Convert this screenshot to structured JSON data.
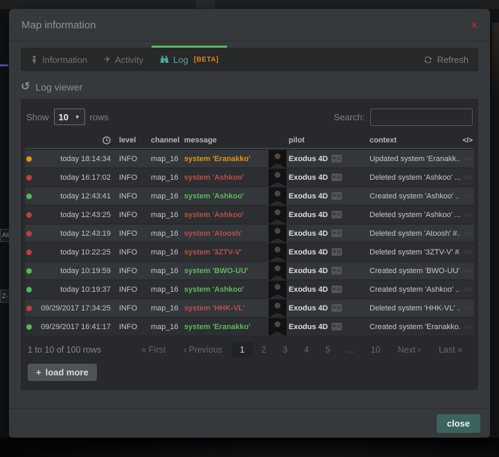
{
  "colors": {
    "accent_green": "#5cb85c",
    "status_updated": "#e2940d",
    "status_deleted": "#c0403a",
    "status_created": "#4fba51",
    "tab_active_teal": "#55a79d",
    "beta_orange": "#e28a0d",
    "close_button_teal": "#3b6360",
    "close_x_red": "#a02e2e"
  },
  "icons": {
    "close": "×",
    "dropdown": "▼",
    "plus": "+",
    "history": "↺",
    "plane": "✈",
    "code": "</>"
  },
  "window": {
    "title": "Map information"
  },
  "tabs": {
    "information": "Information",
    "activity": "Activity",
    "log": "Log",
    "log_beta": "[BETA]",
    "refresh": "Refresh"
  },
  "log_viewer": {
    "title": "Log viewer"
  },
  "toolbar": {
    "show_label": "Show",
    "page_size": "10",
    "rows_label": "rows",
    "search_label": "Search:",
    "search_value": ""
  },
  "table": {
    "headers": {
      "level": "level",
      "channel": "channel",
      "message": "message",
      "pilot": "pilot",
      "context": "context"
    },
    "rows": [
      {
        "status": "updated",
        "time": "today 18:14:34",
        "level": "INFO",
        "channel": "map_16",
        "message": "system 'Eranakko'",
        "pilot": "Exodus 4D",
        "context": "Updated system 'Eranakk..."
      },
      {
        "status": "deleted",
        "time": "today 16:17:02",
        "level": "INFO",
        "channel": "map_16",
        "message": "system 'Ashkoo'",
        "pilot": "Exodus 4D",
        "context": "Deleted system 'Ashkoo' ..."
      },
      {
        "status": "created",
        "time": "today 12:43:41",
        "level": "INFO",
        "channel": "map_16",
        "message": "system 'Ashkoo'",
        "pilot": "Exodus 4D",
        "context": "Created system 'Ashkoo' ..."
      },
      {
        "status": "deleted",
        "time": "today 12:43:25",
        "level": "INFO",
        "channel": "map_16",
        "message": "system 'Ashkoo'",
        "pilot": "Exodus 4D",
        "context": "Deleted system 'Ashkoo' ..."
      },
      {
        "status": "deleted",
        "time": "today 12:43:19",
        "level": "INFO",
        "channel": "map_16",
        "message": "system 'Atoosh'",
        "pilot": "Exodus 4D",
        "context": "Deleted system 'Atoosh' #..."
      },
      {
        "status": "deleted",
        "time": "today 10:22:25",
        "level": "INFO",
        "channel": "map_16",
        "message": "system '3ZTV-V'",
        "pilot": "Exodus 4D",
        "context": "Deleted system '3ZTV-V' #..."
      },
      {
        "status": "created",
        "time": "today 10:19:59",
        "level": "INFO",
        "channel": "map_16",
        "message": "system 'BWO-UU'",
        "pilot": "Exodus 4D",
        "context": "Created system 'BWO-UU'..."
      },
      {
        "status": "created",
        "time": "today 10:19:37",
        "level": "INFO",
        "channel": "map_16",
        "message": "system 'Ashkoo'",
        "pilot": "Exodus 4D",
        "context": "Created system 'Ashkoo' ..."
      },
      {
        "status": "deleted",
        "time": "09/29/2017 17:34:25",
        "level": "INFO",
        "channel": "map_16",
        "message": "system 'HHK-VL'",
        "pilot": "Exodus 4D",
        "context": "Deleted system 'HHK-VL' ..."
      },
      {
        "status": "created",
        "time": "09/29/2017 16:41:17",
        "level": "INFO",
        "channel": "map_16",
        "message": "system 'Eranakko'",
        "pilot": "Exodus 4D",
        "context": "Created system 'Eranakko..."
      }
    ]
  },
  "pagination": {
    "summary": "1 to 10 of 100 rows",
    "first": "« First",
    "previous": "‹ Previous",
    "pages": [
      "1",
      "2",
      "3",
      "4",
      "5",
      "...",
      "10"
    ],
    "active_page": "1",
    "next": "Next ›",
    "last": "Last »"
  },
  "load_more": {
    "label": "load more"
  },
  "footer": {
    "close_label": "close"
  },
  "background": {
    "fragment_1": "Ali",
    "fragment_2": "Z-"
  }
}
